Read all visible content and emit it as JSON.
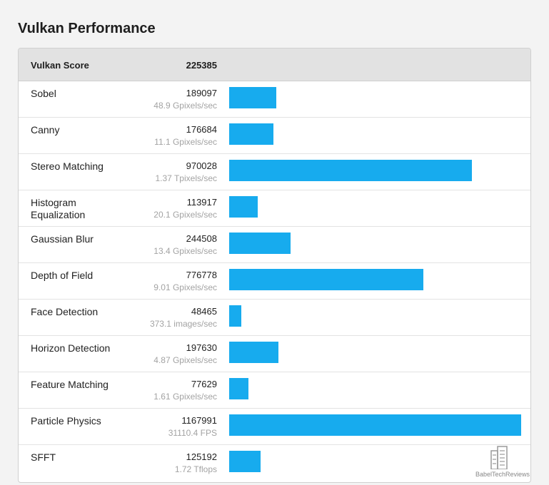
{
  "page": {
    "title": "Vulkan Performance"
  },
  "header": {
    "name": "Vulkan Score",
    "score": "225385"
  },
  "colors": {
    "bar": "#17abee",
    "header_bg": "#e2e2e2",
    "sub_text": "#a3a3a3"
  },
  "chart_data": {
    "type": "bar",
    "orientation": "horizontal",
    "categories": [
      "Sobel",
      "Canny",
      "Stereo Matching",
      "Histogram Equalization",
      "Gaussian Blur",
      "Depth of Field",
      "Face Detection",
      "Horizon Detection",
      "Feature Matching",
      "Particle Physics",
      "SFFT"
    ],
    "values": [
      189097,
      176684,
      970028,
      113917,
      244508,
      776778,
      48465,
      197630,
      77629,
      1167991,
      125192
    ],
    "xlim": [
      0,
      1200000
    ]
  },
  "rows": [
    {
      "name": "Sobel",
      "score": "189097",
      "sub": "48.9 Gpixels/sec"
    },
    {
      "name": "Canny",
      "score": "176684",
      "sub": "11.1 Gpixels/sec"
    },
    {
      "name": "Stereo Matching",
      "score": "970028",
      "sub": "1.37 Tpixels/sec"
    },
    {
      "name": "Histogram Equalization",
      "score": "113917",
      "sub": "20.1 Gpixels/sec"
    },
    {
      "name": "Gaussian Blur",
      "score": "244508",
      "sub": "13.4 Gpixels/sec"
    },
    {
      "name": "Depth of Field",
      "score": "776778",
      "sub": "9.01 Gpixels/sec"
    },
    {
      "name": "Face Detection",
      "score": "48465",
      "sub": "373.1 images/sec"
    },
    {
      "name": "Horizon Detection",
      "score": "197630",
      "sub": "4.87 Gpixels/sec"
    },
    {
      "name": "Feature Matching",
      "score": "77629",
      "sub": "1.61 Gpixels/sec"
    },
    {
      "name": "Particle Physics",
      "score": "1167991",
      "sub": "31110.4 FPS"
    },
    {
      "name": "SFFT",
      "score": "125192",
      "sub": "1.72 Tflops"
    }
  ],
  "watermark": {
    "icon": "building-icon",
    "text": "BabelTechReviews"
  }
}
